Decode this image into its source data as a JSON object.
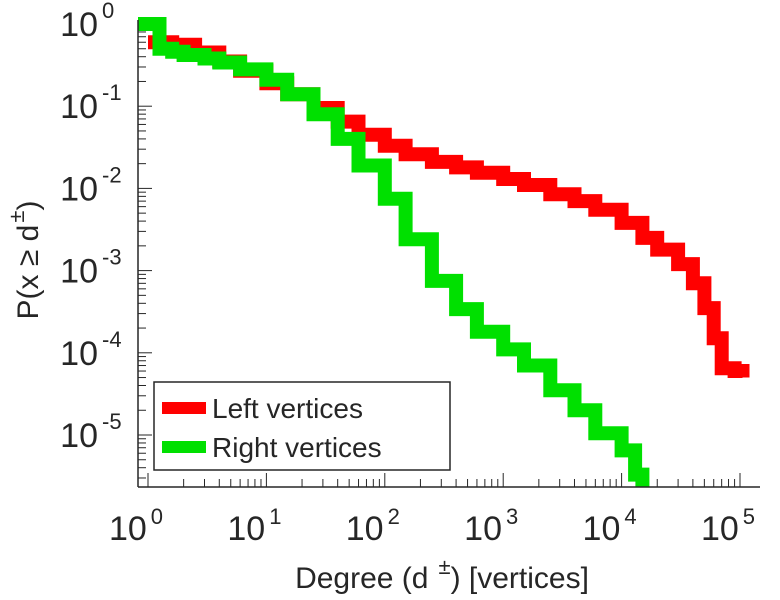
{
  "chart_data": {
    "type": "line",
    "xscale": "log",
    "yscale": "log",
    "xlim": [
      1,
      100000
    ],
    "ylim": [
      2.5e-06,
      1
    ],
    "xlabel": {
      "pre": "Degree (d",
      "sup": "±",
      "post": ") [vertices]"
    },
    "ylabel": {
      "pre": "P(x ≥ d",
      "sup": "±",
      "post": ")"
    },
    "xticks": [
      {
        "base": "10",
        "exp": "0"
      },
      {
        "base": "10",
        "exp": "1"
      },
      {
        "base": "10",
        "exp": "2"
      },
      {
        "base": "10",
        "exp": "3"
      },
      {
        "base": "10",
        "exp": "4"
      },
      {
        "base": "10",
        "exp": "5"
      }
    ],
    "yticks": [
      {
        "base": "10",
        "exp": "0"
      },
      {
        "base": "10",
        "exp": "-1"
      },
      {
        "base": "10",
        "exp": "-2"
      },
      {
        "base": "10",
        "exp": "-3"
      },
      {
        "base": "10",
        "exp": "-4"
      },
      {
        "base": "10",
        "exp": "-5"
      }
    ],
    "legend_position": "bottom-left",
    "series": [
      {
        "name": "Left vertices",
        "color": "#ff0000",
        "x": [
          1,
          1.6,
          2.5,
          4,
          6,
          10,
          15,
          25,
          40,
          60,
          100,
          150,
          250,
          400,
          600,
          1000,
          1500,
          2500,
          4000,
          6000,
          10000,
          15000,
          20000,
          30000,
          40000,
          50000,
          60000,
          70000,
          80000,
          90000,
          105000
        ],
        "values": [
          0.6,
          0.56,
          0.45,
          0.35,
          0.27,
          0.19,
          0.14,
          0.095,
          0.065,
          0.045,
          0.033,
          0.026,
          0.021,
          0.018,
          0.0155,
          0.013,
          0.011,
          0.0085,
          0.007,
          0.0055,
          0.0038,
          0.0025,
          0.0018,
          0.0012,
          0.0007,
          0.00035,
          0.00015,
          6.5e-05,
          6.5e-05,
          6e-05,
          5e-05
        ]
      },
      {
        "name": "Right vertices",
        "color": "#00e000",
        "x": [
          0.8,
          1,
          1.25,
          1.6,
          2,
          3,
          4,
          6,
          10,
          15,
          25,
          40,
          60,
          100,
          150,
          250,
          400,
          600,
          1000,
          1500,
          2500,
          4000,
          6000,
          10000,
          13000,
          15000
        ],
        "values": [
          1,
          1,
          0.5,
          0.46,
          0.42,
          0.38,
          0.34,
          0.28,
          0.21,
          0.14,
          0.08,
          0.04,
          0.019,
          0.0075,
          0.0024,
          0.00075,
          0.00034,
          0.00018,
          0.00011,
          7e-05,
          3.5e-05,
          2e-05,
          1.05e-05,
          6.5e-06,
          3.3e-06,
          2.8e-06
        ]
      }
    ]
  }
}
